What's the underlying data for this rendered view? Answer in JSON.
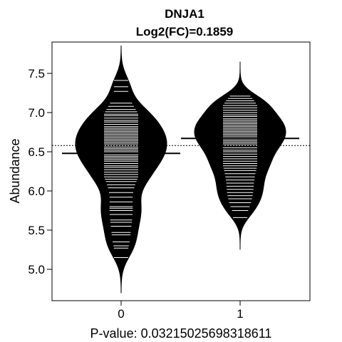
{
  "chart_data": {
    "type": "beanplot",
    "title": "DNJA1",
    "subtitle": "Log2(FC)=0.1859",
    "xlabel": "P-value: 0.0321502569831861​1",
    "ylabel": "Abundance",
    "ylim": [
      4.6,
      7.9
    ],
    "y_ticks": [
      "5.0",
      "5.5",
      "6.0",
      "6.5",
      "7.0",
      "7.5"
    ],
    "categories": [
      "0",
      "1"
    ],
    "overall_mean": 6.58,
    "grid": false,
    "series": [
      {
        "category": "0",
        "mean": 6.48,
        "range": [
          4.7,
          7.85
        ],
        "observations": [
          7.41,
          7.33,
          7.27,
          7.12,
          7.08,
          7.04,
          7.01,
          6.98,
          6.96,
          6.93,
          6.9,
          6.88,
          6.85,
          6.82,
          6.8,
          6.78,
          6.76,
          6.74,
          6.72,
          6.7,
          6.68,
          6.66,
          6.64,
          6.62,
          6.6,
          6.58,
          6.56,
          6.54,
          6.52,
          6.5,
          6.48,
          6.46,
          6.44,
          6.42,
          6.4,
          6.38,
          6.35,
          6.32,
          6.3,
          6.27,
          6.24,
          6.21,
          6.18,
          6.15,
          6.12,
          6.08,
          6.04,
          5.98,
          5.92,
          5.86,
          5.8,
          5.78,
          5.75,
          5.7,
          5.63,
          5.6,
          5.55,
          5.47,
          5.44,
          5.35,
          5.3,
          5.27,
          5.15
        ]
      },
      {
        "category": "1",
        "mean": 6.67,
        "range": [
          5.25,
          7.65
        ],
        "observations": [
          7.21,
          7.18,
          7.15,
          7.12,
          7.09,
          7.06,
          7.03,
          7.0,
          6.97,
          6.95,
          6.92,
          6.9,
          6.88,
          6.86,
          6.84,
          6.82,
          6.8,
          6.78,
          6.76,
          6.74,
          6.72,
          6.7,
          6.68,
          6.66,
          6.64,
          6.62,
          6.6,
          6.58,
          6.55,
          6.52,
          6.5,
          6.47,
          6.44,
          6.41,
          6.38,
          6.35,
          6.32,
          6.29,
          6.26,
          6.22,
          6.18,
          6.14,
          6.1,
          6.06,
          6.02,
          5.98,
          5.94,
          5.9,
          5.85,
          5.8,
          5.75,
          5.66
        ]
      }
    ]
  }
}
